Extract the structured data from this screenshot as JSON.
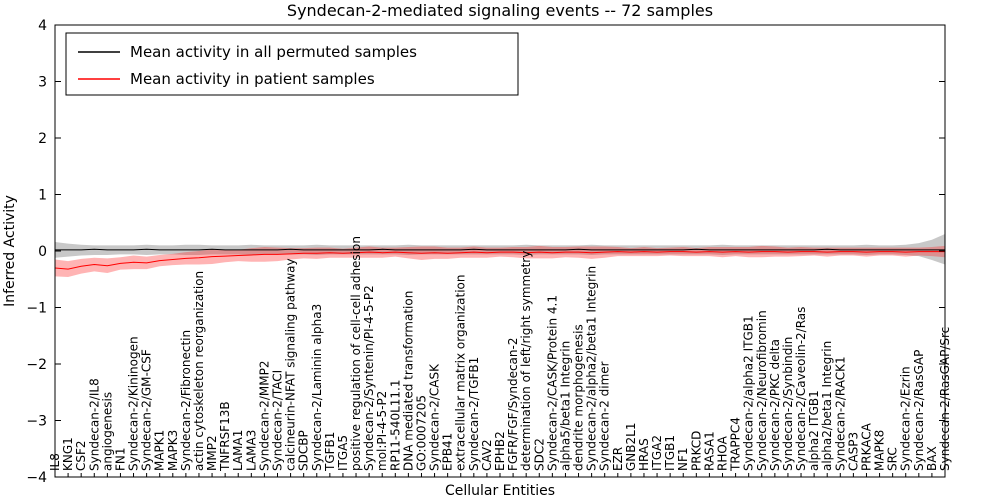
{
  "chart_data": {
    "type": "line",
    "title": "Syndecan-2-mediated signaling events -- 72 samples",
    "xlabel": "Cellular Entities",
    "ylabel": "Inferred Activity",
    "ylim": [
      -4,
      4
    ],
    "yticks": [
      -4,
      -3,
      -2,
      -1,
      0,
      1,
      2,
      3,
      4
    ],
    "grid": false,
    "legend_position": "upper left",
    "categories": [
      "IL8",
      "KNG1",
      "CSF2",
      "Syndecan-2/IL8",
      "angiogenesis",
      "FN1",
      "Syndecan-2/Kininogen",
      "Syndecan-2/GM-CSF",
      "MAPK1",
      "MAPK3",
      "Syndecan-2/Fibronectin",
      "actin cytoskeleton reorganization",
      "MMP2",
      "TNFRSF13B",
      "LAMA1",
      "LAMA3",
      "Syndecan-2/MMP2",
      "Syndecan-2/TACI",
      "calcineurin-NFAT signaling pathway",
      "SDCBP",
      "Syndecan-2/Laminin alpha3",
      "TGFB1",
      "ITGA5",
      "positive regulation of cell-cell adhesion",
      "Syndecan-2/Syntenin/PI-4-5-P2",
      "mol:PI-4-5-P2",
      "RP11-540L11.1",
      "DNA mediated transformation",
      "GO:0007205",
      "Syndecan-2/CASK",
      "EPB41",
      "extracellular matrix organization",
      "Syndecan-2/TGFB1",
      "CAV2",
      "EPHB2",
      "FGFR/FGF/Syndecan-2",
      "determination of left/right symmetry",
      "SDC2",
      "Syndecan-2/CASK/Protein 4.1",
      "alpha5/beta1 Integrin",
      "dendrite morphogenesis",
      "Syndecan-2/alpha2/beta1 Integrin",
      "Syndecan-2 dimer",
      "EZR",
      "GNB2L1",
      "HRAS",
      "ITGA2",
      "ITGB1",
      "NF1",
      "PRKCD",
      "RASA1",
      "RHOA",
      "TRAPPC4",
      "Syndecan-2/alpha2 ITGB1",
      "Syndecan-2/Neurofibromin",
      "Syndecan-2/PKC delta",
      "Syndecan-2/Synbindin",
      "Syndecan-2/Caveolin-2/Ras",
      "alpha2 ITGB1",
      "alpha2/beta1 Integrin",
      "Syndecan-2/RACK1",
      "CASP3",
      "PRKACA",
      "MAPK8",
      "SRC",
      "Syndecan-2/Ezrin",
      "Syndecan-2/RasGAP",
      "BAX",
      "Syndecan-2/RasGAP/Src"
    ],
    "series": [
      {
        "name": "Mean activity in all permuted samples",
        "color": "#000000",
        "band_color": "rgba(110,110,110,0.38)",
        "values": [
          0.02,
          0.02,
          0.02,
          0.03,
          0.02,
          0.02,
          0.02,
          0.03,
          0.02,
          0.02,
          0.02,
          0.02,
          0.03,
          0.02,
          0.02,
          0.02,
          0.02,
          0.02,
          0.03,
          0.02,
          0.02,
          0.02,
          0.02,
          0.02,
          0.02,
          0.03,
          0.02,
          0.02,
          0.02,
          0.02,
          0.02,
          0.02,
          0.03,
          0.02,
          0.02,
          0.02,
          0.02,
          0.02,
          0.02,
          0.02,
          0.03,
          0.02,
          0.02,
          0.02,
          0.02,
          0.02,
          0.02,
          0.02,
          0.02,
          0.03,
          0.02,
          0.02,
          0.02,
          0.02,
          0.02,
          0.02,
          0.02,
          0.02,
          0.02,
          0.03,
          0.02,
          0.02,
          0.02,
          0.02,
          0.02,
          0.02,
          0.02,
          0.02,
          0.02
        ],
        "band_lower": [
          -0.12,
          -0.1,
          -0.08,
          -0.07,
          -0.07,
          -0.06,
          -0.06,
          -0.07,
          -0.06,
          -0.06,
          -0.07,
          -0.07,
          -0.06,
          -0.06,
          -0.06,
          -0.07,
          -0.06,
          -0.06,
          -0.06,
          -0.06,
          -0.07,
          -0.06,
          -0.06,
          -0.06,
          -0.06,
          -0.06,
          -0.06,
          -0.07,
          -0.06,
          -0.06,
          -0.06,
          -0.06,
          -0.06,
          -0.06,
          -0.06,
          -0.06,
          -0.07,
          -0.06,
          -0.06,
          -0.06,
          -0.06,
          -0.07,
          -0.06,
          -0.06,
          -0.06,
          -0.06,
          -0.06,
          -0.06,
          -0.06,
          -0.06,
          -0.06,
          -0.07,
          -0.06,
          -0.06,
          -0.06,
          -0.06,
          -0.06,
          -0.06,
          -0.06,
          -0.06,
          -0.06,
          -0.06,
          -0.07,
          -0.06,
          -0.06,
          -0.07,
          -0.09,
          -0.16,
          -0.24
        ],
        "band_upper": [
          0.16,
          0.13,
          0.11,
          0.1,
          0.1,
          0.1,
          0.1,
          0.11,
          0.1,
          0.1,
          0.11,
          0.11,
          0.1,
          0.1,
          0.1,
          0.11,
          0.1,
          0.1,
          0.1,
          0.1,
          0.11,
          0.1,
          0.1,
          0.1,
          0.1,
          0.1,
          0.1,
          0.11,
          0.1,
          0.1,
          0.1,
          0.1,
          0.1,
          0.1,
          0.1,
          0.1,
          0.11,
          0.1,
          0.1,
          0.1,
          0.1,
          0.11,
          0.1,
          0.1,
          0.1,
          0.1,
          0.1,
          0.1,
          0.1,
          0.1,
          0.1,
          0.11,
          0.1,
          0.1,
          0.1,
          0.1,
          0.1,
          0.1,
          0.1,
          0.1,
          0.1,
          0.1,
          0.11,
          0.1,
          0.1,
          0.11,
          0.14,
          0.2,
          0.3
        ]
      },
      {
        "name": "Mean activity in patient samples",
        "color": "#ff0000",
        "band_color": "rgba(255,40,40,0.35)",
        "values": [
          -0.3,
          -0.32,
          -0.27,
          -0.24,
          -0.26,
          -0.22,
          -0.2,
          -0.21,
          -0.17,
          -0.15,
          -0.13,
          -0.12,
          -0.1,
          -0.09,
          -0.08,
          -0.07,
          -0.06,
          -0.06,
          -0.05,
          -0.04,
          -0.04,
          -0.03,
          -0.04,
          -0.03,
          -0.02,
          -0.03,
          -0.02,
          -0.03,
          -0.04,
          -0.03,
          -0.04,
          -0.03,
          -0.02,
          -0.03,
          -0.02,
          -0.02,
          -0.03,
          -0.02,
          -0.03,
          -0.02,
          -0.02,
          -0.03,
          -0.02,
          -0.01,
          -0.02,
          -0.01,
          -0.02,
          -0.01,
          -0.01,
          -0.02,
          -0.01,
          -0.02,
          -0.01,
          -0.02,
          -0.01,
          -0.01,
          -0.02,
          -0.01,
          -0.01,
          -0.02,
          -0.01,
          -0.01,
          -0.02,
          -0.01,
          -0.01,
          -0.02,
          -0.01,
          -0.01,
          -0.01
        ],
        "band_lower": [
          -0.45,
          -0.46,
          -0.4,
          -0.36,
          -0.39,
          -0.33,
          -0.32,
          -0.32,
          -0.27,
          -0.25,
          -0.24,
          -0.24,
          -0.23,
          -0.2,
          -0.18,
          -0.19,
          -0.19,
          -0.18,
          -0.15,
          -0.13,
          -0.14,
          -0.12,
          -0.12,
          -0.12,
          -0.12,
          -0.12,
          -0.1,
          -0.13,
          -0.16,
          -0.14,
          -0.14,
          -0.12,
          -0.12,
          -0.12,
          -0.1,
          -0.11,
          -0.13,
          -0.13,
          -0.13,
          -0.11,
          -0.12,
          -0.14,
          -0.12,
          -0.09,
          -0.09,
          -0.09,
          -0.09,
          -0.08,
          -0.09,
          -0.09,
          -0.09,
          -0.11,
          -0.09,
          -0.11,
          -0.11,
          -0.1,
          -0.1,
          -0.09,
          -0.08,
          -0.1,
          -0.08,
          -0.08,
          -0.1,
          -0.08,
          -0.08,
          -0.1,
          -0.08,
          -0.09,
          -0.11
        ],
        "band_upper": [
          -0.15,
          -0.18,
          -0.14,
          -0.12,
          -0.13,
          -0.11,
          -0.08,
          -0.1,
          -0.07,
          -0.05,
          -0.02,
          0.0,
          0.03,
          0.02,
          0.02,
          0.05,
          0.07,
          0.06,
          0.05,
          0.05,
          0.06,
          0.06,
          0.04,
          0.06,
          0.08,
          0.06,
          0.06,
          0.07,
          0.08,
          0.08,
          0.06,
          0.06,
          0.08,
          0.06,
          0.06,
          0.07,
          0.07,
          0.09,
          0.07,
          0.07,
          0.08,
          0.08,
          0.08,
          0.07,
          0.05,
          0.07,
          0.05,
          0.06,
          0.07,
          0.05,
          0.07,
          0.07,
          0.07,
          0.07,
          0.09,
          0.08,
          0.06,
          0.07,
          0.06,
          0.06,
          0.06,
          0.06,
          0.06,
          0.06,
          0.06,
          0.06,
          0.06,
          0.07,
          0.09
        ]
      }
    ]
  }
}
